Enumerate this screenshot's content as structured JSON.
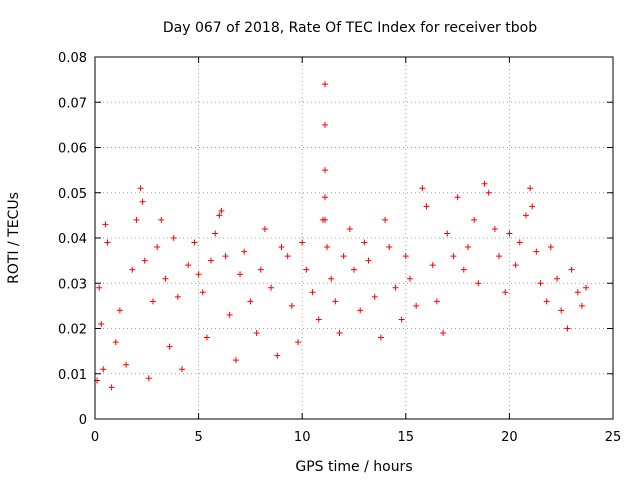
{
  "chart_data": {
    "type": "scatter",
    "title": "Day 067 of 2018, Rate Of TEC Index for receiver tbob",
    "xlabel": "GPS time / hours",
    "ylabel": "ROTI / TECUs",
    "xlim": [
      0,
      25
    ],
    "ylim": [
      0,
      0.08
    ],
    "xticks": [
      0,
      5,
      10,
      15,
      20,
      25
    ],
    "yticks": [
      0,
      0.01,
      0.02,
      0.03,
      0.04,
      0.05,
      0.06,
      0.07,
      0.08
    ],
    "xtick_labels": [
      "0",
      "5",
      "10",
      "15",
      "20",
      "25"
    ],
    "ytick_labels": [
      "0",
      "0.01",
      "0.02",
      "0.03",
      "0.04",
      "0.05",
      "0.06",
      "0.07",
      "0.08"
    ],
    "grid": true,
    "marker": "+",
    "color": "#ff0000",
    "series": [
      {
        "name": "ROTI",
        "x": [
          0.1,
          0.2,
          0.3,
          0.4,
          0.5,
          0.6,
          0.8,
          1.0,
          1.2,
          1.5,
          1.8,
          2.0,
          2.2,
          2.3,
          2.4,
          2.6,
          2.8,
          3.0,
          3.2,
          3.4,
          3.6,
          3.8,
          4.0,
          4.2,
          4.5,
          4.8,
          5.0,
          5.2,
          5.4,
          5.6,
          5.8,
          6.0,
          6.1,
          6.3,
          6.5,
          6.8,
          7.0,
          7.2,
          7.5,
          7.8,
          8.0,
          8.2,
          8.5,
          8.8,
          9.0,
          9.3,
          9.5,
          9.8,
          10.0,
          10.2,
          10.5,
          10.8,
          11.0,
          11.1,
          11.1,
          11.1,
          11.1,
          11.1,
          11.2,
          11.4,
          11.6,
          11.8,
          12.0,
          12.3,
          12.5,
          12.8,
          13.0,
          13.2,
          13.5,
          13.8,
          14.0,
          14.2,
          14.5,
          14.8,
          15.0,
          15.2,
          15.5,
          15.8,
          16.0,
          16.3,
          16.5,
          16.8,
          17.0,
          17.3,
          17.5,
          17.8,
          18.0,
          18.3,
          18.5,
          18.8,
          19.0,
          19.3,
          19.5,
          19.8,
          20.0,
          20.3,
          20.5,
          20.8,
          21.0,
          21.1,
          21.3,
          21.5,
          21.8,
          22.0,
          22.3,
          22.5,
          22.8,
          23.0,
          23.3,
          23.5,
          23.7
        ],
        "y": [
          0.0085,
          0.029,
          0.021,
          0.011,
          0.043,
          0.039,
          0.007,
          0.017,
          0.024,
          0.012,
          0.033,
          0.044,
          0.051,
          0.048,
          0.035,
          0.009,
          0.026,
          0.038,
          0.044,
          0.031,
          0.016,
          0.04,
          0.027,
          0.011,
          0.034,
          0.039,
          0.032,
          0.028,
          0.018,
          0.035,
          0.041,
          0.045,
          0.046,
          0.036,
          0.023,
          0.013,
          0.032,
          0.037,
          0.026,
          0.019,
          0.033,
          0.042,
          0.029,
          0.014,
          0.038,
          0.036,
          0.025,
          0.017,
          0.039,
          0.033,
          0.028,
          0.022,
          0.044,
          0.074,
          0.065,
          0.055,
          0.049,
          0.044,
          0.038,
          0.031,
          0.026,
          0.019,
          0.036,
          0.042,
          0.033,
          0.024,
          0.039,
          0.035,
          0.027,
          0.018,
          0.044,
          0.038,
          0.029,
          0.022,
          0.036,
          0.031,
          0.025,
          0.051,
          0.047,
          0.034,
          0.026,
          0.019,
          0.041,
          0.036,
          0.049,
          0.033,
          0.038,
          0.044,
          0.03,
          0.052,
          0.05,
          0.042,
          0.036,
          0.028,
          0.041,
          0.034,
          0.039,
          0.045,
          0.051,
          0.047,
          0.037,
          0.03,
          0.026,
          0.038,
          0.031,
          0.024,
          0.02,
          0.033,
          0.028,
          0.025,
          0.029
        ]
      }
    ]
  }
}
